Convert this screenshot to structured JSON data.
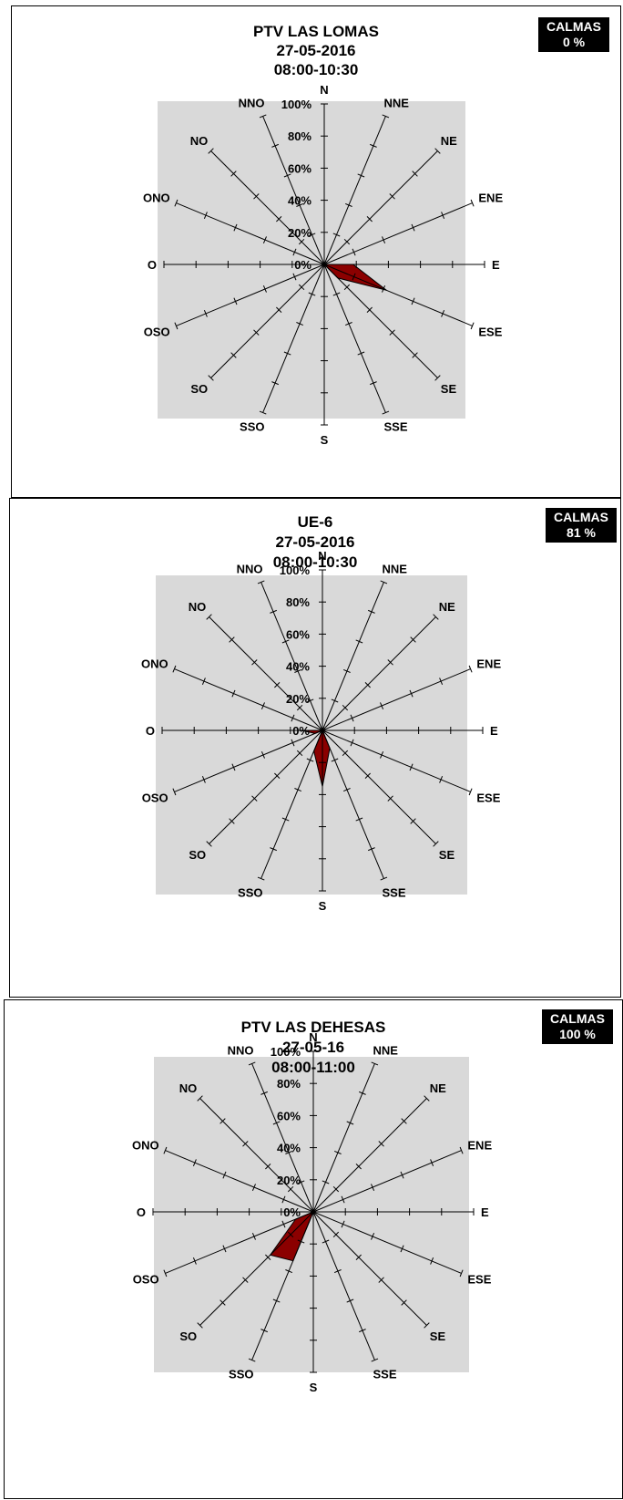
{
  "charts": [
    {
      "title": "PTV LAS LOMAS",
      "date": "27-05-2016",
      "time": "08:00-10:30",
      "calmas_label": "CALMAS",
      "calmas_value": "0 %",
      "chart_data": {
        "type": "radar",
        "directions": [
          "N",
          "NNE",
          "NE",
          "ENE",
          "E",
          "ESE",
          "SE",
          "SSE",
          "S",
          "SSO",
          "SO",
          "OSO",
          "O",
          "ONO",
          "NO",
          "NNO"
        ],
        "values": [
          0,
          0,
          0,
          0,
          18,
          42,
          12,
          0,
          0,
          0,
          0,
          0,
          0,
          0,
          0,
          0
        ],
        "rlim": [
          0,
          100
        ],
        "ticks": [
          "0%",
          "20%",
          "40%",
          "60%",
          "80%",
          "100%"
        ],
        "series_color": "#8b0000"
      }
    },
    {
      "title": "UE-6",
      "date": "27-05-2016",
      "time": "08:00-10:30",
      "calmas_label": "CALMAS",
      "calmas_value": "81 %",
      "chart_data": {
        "type": "radar",
        "directions": [
          "N",
          "NNE",
          "NE",
          "ENE",
          "E",
          "ESE",
          "SE",
          "SSE",
          "S",
          "SSO",
          "SO",
          "OSO",
          "O",
          "ONO",
          "NO",
          "NNO"
        ],
        "values": [
          0,
          0,
          0,
          0,
          0,
          0,
          0,
          12,
          35,
          14,
          0,
          5,
          13,
          0,
          0,
          0
        ],
        "rlim": [
          0,
          100
        ],
        "ticks": [
          "0%",
          "20%",
          "40%",
          "60%",
          "80%",
          "100%"
        ],
        "series_color": "#8b0000"
      }
    },
    {
      "title": "PTV LAS DEHESAS",
      "date": "27-05-16",
      "time": "08:00-11:00",
      "calmas_label": "CALMAS",
      "calmas_value": "100 %",
      "chart_data": {
        "type": "radar",
        "directions": [
          "N",
          "NNE",
          "NE",
          "ENE",
          "E",
          "ESE",
          "SE",
          "SSE",
          "S",
          "SSO",
          "SO",
          "OSO",
          "O",
          "ONO",
          "NO",
          "NNO"
        ],
        "values": [
          0,
          0,
          0,
          0,
          0,
          0,
          0,
          0,
          0,
          33,
          38,
          12,
          0,
          0,
          0,
          0
        ],
        "rlim": [
          0,
          100
        ],
        "ticks": [
          "0%",
          "20%",
          "40%",
          "60%",
          "80%",
          "100%"
        ],
        "series_color": "#8b0000"
      }
    }
  ]
}
